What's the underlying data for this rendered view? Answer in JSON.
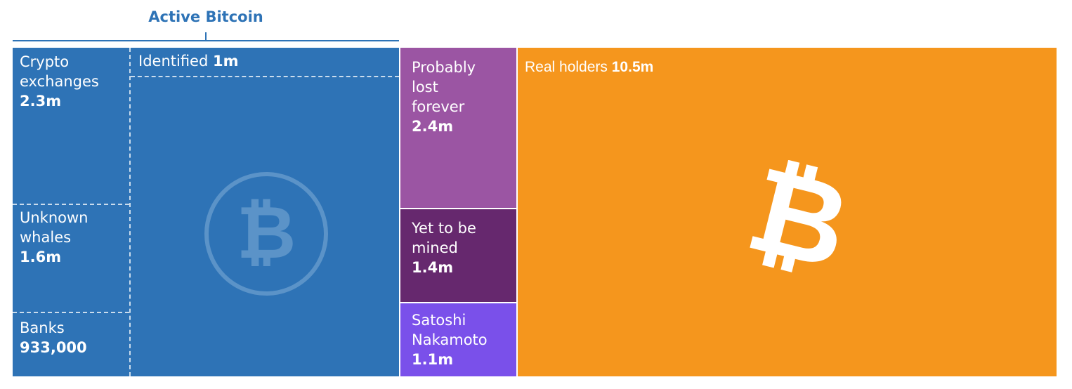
{
  "chart_data": {
    "type": "treemap",
    "group_label": "Active Bitcoin",
    "colors": {
      "active": "#2e73b6",
      "probably_lost": "#9b55a3",
      "yet_to_be_mined": "#66286e",
      "satoshi": "#7a50ea",
      "real_holders": "#f5961d",
      "icon_on_blue": "#5b93c8"
    },
    "tiles": [
      {
        "name": "Crypto\nexchanges",
        "value_label": "2.3m",
        "value": 2300000,
        "group": "Active Bitcoin"
      },
      {
        "name": "Unknown\nwhales",
        "value_label": "1.6m",
        "value": 1600000,
        "group": "Active Bitcoin"
      },
      {
        "name": "Banks",
        "value_label": "933,000",
        "value": 933000,
        "group": "Active Bitcoin"
      },
      {
        "name": "Identified",
        "value_label": "1m",
        "value": 1000000,
        "group": "Active Bitcoin"
      },
      {
        "name": "Probably\nlost\nforever",
        "value_label": "2.4m",
        "value": 2400000
      },
      {
        "name": "Yet to be\nmined",
        "value_label": "1.4m",
        "value": 1400000
      },
      {
        "name": "Satoshi\nNakamoto",
        "value_label": "1.1m",
        "value": 1100000
      },
      {
        "name": "Real holders",
        "value_label": "10.5m",
        "value": 10500000
      }
    ],
    "icons": [
      "bitcoin-icon",
      "bitcoin-icon"
    ]
  }
}
